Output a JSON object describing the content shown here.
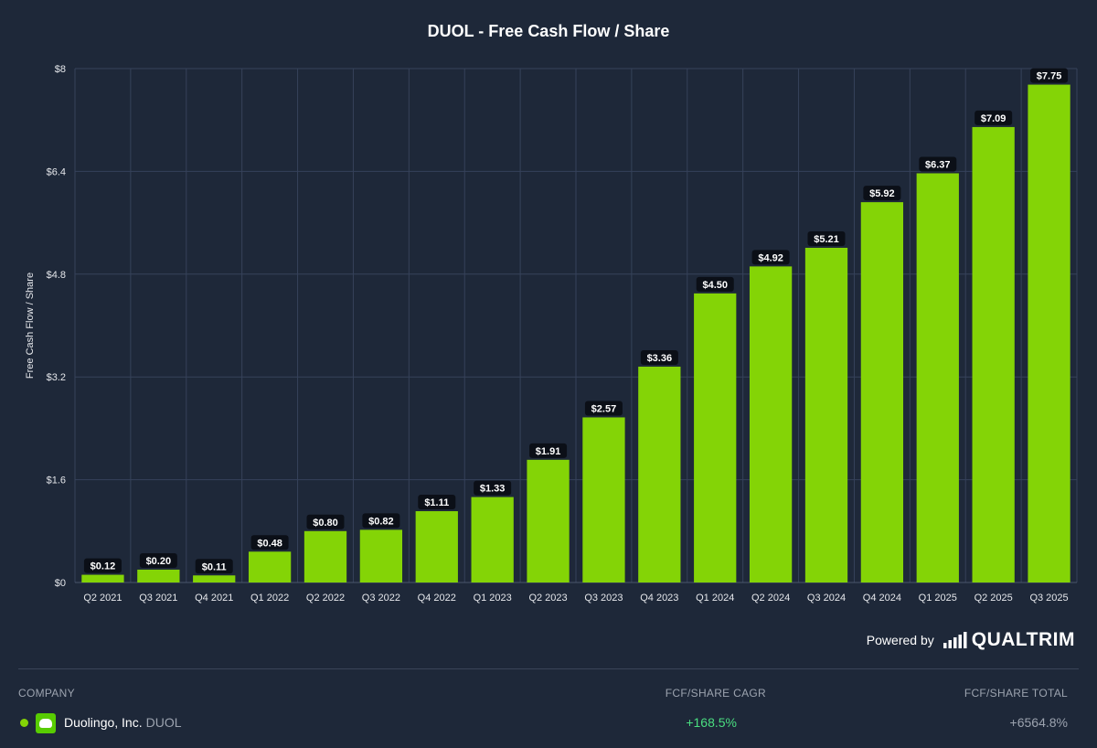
{
  "chart_data": {
    "type": "bar",
    "title": "DUOL - Free Cash Flow / Share",
    "ylabel": "Free Cash Flow / Share",
    "xlabel": "",
    "ylim": [
      0,
      8
    ],
    "yticks": [
      "$0",
      "$1.6",
      "$3.2",
      "$4.8",
      "$6.4",
      "$8"
    ],
    "ytick_values": [
      0,
      1.6,
      3.2,
      4.8,
      6.4,
      8
    ],
    "categories": [
      "Q2 2021",
      "Q3 2021",
      "Q4 2021",
      "Q1 2022",
      "Q2 2022",
      "Q3 2022",
      "Q4 2022",
      "Q1 2023",
      "Q2 2023",
      "Q3 2023",
      "Q4 2023",
      "Q1 2024",
      "Q2 2024",
      "Q3 2024",
      "Q4 2024",
      "Q1 2025",
      "Q2 2025",
      "Q3 2025"
    ],
    "values": [
      0.12,
      0.2,
      0.11,
      0.48,
      0.8,
      0.82,
      1.11,
      1.33,
      1.91,
      2.57,
      3.36,
      4.5,
      4.92,
      5.21,
      5.92,
      6.37,
      7.09,
      7.75
    ],
    "value_labels": [
      "$0.12",
      "$0.20",
      "$0.11",
      "$0.48",
      "$0.80",
      "$0.82",
      "$1.11",
      "$1.33",
      "$1.91",
      "$2.57",
      "$3.36",
      "$4.50",
      "$4.92",
      "$5.21",
      "$5.92",
      "$6.37",
      "$7.09",
      "$7.75"
    ],
    "bar_color": "#84d406",
    "grid": true,
    "legend": "none"
  },
  "footer": {
    "powered_by": "Powered by",
    "brand": "QUALTRIM",
    "col_company": "COMPANY",
    "col_cagr": "FCF/SHARE CAGR",
    "col_total": "FCF/SHARE TOTAL",
    "company": "Duolingo, Inc.",
    "ticker": "DUOL",
    "cagr": "+168.5%",
    "total": "+6564.8%",
    "logo_icon": "duolingo-logo-icon",
    "series_color": "#84d406"
  },
  "colors": {
    "background": "#1e2839",
    "grid": "#36425a",
    "label_bg": "#0b0f17",
    "positive": "#4ade80"
  }
}
